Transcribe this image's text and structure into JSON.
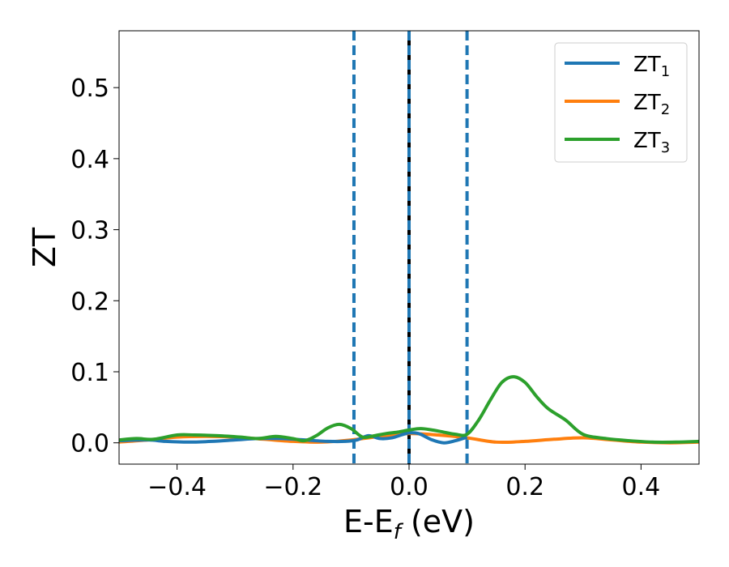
{
  "chart_data": {
    "type": "line",
    "title": "",
    "xlabel": "E-E",
    "xlabel_sub": "f",
    "xlabel_unit": " (eV)",
    "ylabel": "ZT",
    "xlim": [
      -0.5,
      0.5
    ],
    "ylim": [
      -0.03,
      0.58
    ],
    "x_ticks": [
      -0.4,
      -0.2,
      0.0,
      0.2,
      0.4
    ],
    "x_tick_labels": [
      "−0.4",
      "−0.2",
      "0.0",
      "0.2",
      "0.4"
    ],
    "y_ticks": [
      0.0,
      0.1,
      0.2,
      0.3,
      0.4,
      0.5
    ],
    "y_tick_labels": [
      "0.0",
      "0.1",
      "0.2",
      "0.3",
      "0.4",
      "0.5"
    ],
    "grid": false,
    "legend_position": "top-right",
    "vertical_lines": [
      {
        "x": -0.095,
        "color": "#1f77b4",
        "style": "dashed"
      },
      {
        "x": 0.0,
        "color": "#000000",
        "style": "solid"
      },
      {
        "x": 0.0,
        "color": "#1f77b4",
        "style": "dashed"
      },
      {
        "x": 0.1,
        "color": "#1f77b4",
        "style": "dashed"
      }
    ],
    "series": [
      {
        "name": "ZT",
        "name_sub": "1",
        "color": "#1f77b4",
        "x": [
          -0.5,
          -0.45,
          -0.42,
          -0.38,
          -0.34,
          -0.3,
          -0.26,
          -0.22,
          -0.18,
          -0.14,
          -0.11,
          -0.09,
          -0.07,
          -0.05,
          -0.03,
          -0.01,
          0.0,
          0.01,
          0.02,
          0.04,
          0.06,
          0.08,
          0.1
        ],
        "y": [
          0.003,
          0.004,
          0.002,
          0.001,
          0.002,
          0.004,
          0.006,
          0.006,
          0.004,
          0.002,
          0.002,
          0.004,
          0.01,
          0.006,
          0.007,
          0.012,
          0.014,
          0.014,
          0.012,
          0.004,
          0.0,
          0.003,
          0.008
        ]
      },
      {
        "name": "ZT",
        "name_sub": "2",
        "color": "#ff7f0e",
        "x": [
          -0.5,
          -0.45,
          -0.4,
          -0.35,
          -0.3,
          -0.25,
          -0.2,
          -0.15,
          -0.1,
          -0.05,
          0.0,
          0.05,
          0.1,
          0.15,
          0.2,
          0.25,
          0.3,
          0.35,
          0.4,
          0.45,
          0.5
        ],
        "y": [
          0.001,
          0.004,
          0.008,
          0.009,
          0.008,
          0.005,
          0.002,
          0.001,
          0.004,
          0.009,
          0.013,
          0.011,
          0.007,
          0.001,
          0.002,
          0.005,
          0.007,
          0.004,
          0.001,
          0.0,
          0.001
        ]
      },
      {
        "name": "ZT",
        "name_sub": "3",
        "color": "#2ca02c",
        "x": [
          -0.5,
          -0.47,
          -0.44,
          -0.4,
          -0.37,
          -0.33,
          -0.29,
          -0.26,
          -0.23,
          -0.2,
          -0.18,
          -0.16,
          -0.14,
          -0.12,
          -0.1,
          -0.08,
          -0.06,
          -0.04,
          -0.02,
          0.0,
          0.02,
          0.04,
          0.06,
          0.08,
          0.1,
          0.12,
          0.14,
          0.16,
          0.18,
          0.2,
          0.22,
          0.24,
          0.27,
          0.3,
          0.34,
          0.38,
          0.42,
          0.46,
          0.5
        ],
        "y": [
          0.004,
          0.006,
          0.005,
          0.011,
          0.011,
          0.01,
          0.008,
          0.006,
          0.009,
          0.006,
          0.003,
          0.01,
          0.021,
          0.026,
          0.02,
          0.008,
          0.01,
          0.013,
          0.015,
          0.018,
          0.02,
          0.018,
          0.015,
          0.012,
          0.012,
          0.032,
          0.06,
          0.085,
          0.093,
          0.085,
          0.065,
          0.048,
          0.032,
          0.012,
          0.006,
          0.003,
          0.001,
          0.001,
          0.002
        ]
      }
    ]
  }
}
